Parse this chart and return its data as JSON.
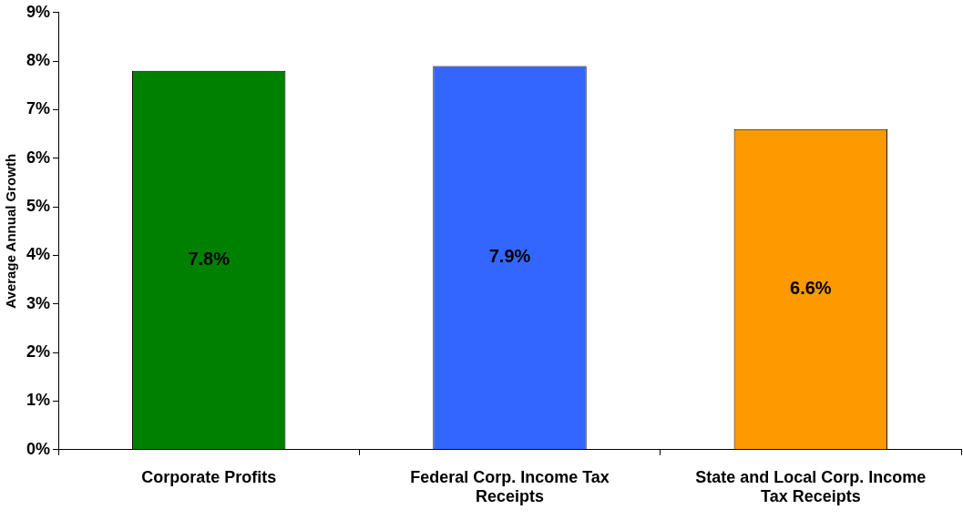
{
  "chart_data": {
    "type": "bar",
    "ylabel": "Average Annual Growth",
    "categories": [
      "Corporate Profits",
      "Federal Corp. Income Tax Receipts",
      "State and Local Corp. Income Tax Receipts"
    ],
    "values": [
      7.8,
      7.9,
      6.6
    ],
    "colors": [
      "#008000",
      "#3366ff",
      "#ff9900"
    ],
    "value_labels": [
      "7.8%",
      "7.9%",
      "6.6%"
    ],
    "ylim": [
      0,
      9
    ],
    "yticks": [
      {
        "value": 0,
        "label": "0%"
      },
      {
        "value": 1,
        "label": "1%"
      },
      {
        "value": 2,
        "label": "2%"
      },
      {
        "value": 3,
        "label": "3%"
      },
      {
        "value": 4,
        "label": "4%"
      },
      {
        "value": 5,
        "label": "5%"
      },
      {
        "value": 6,
        "label": "6%"
      },
      {
        "value": 7,
        "label": "7%"
      },
      {
        "value": 8,
        "label": "8%"
      },
      {
        "value": 9,
        "label": "9%"
      }
    ],
    "grid": false,
    "legend": false
  }
}
